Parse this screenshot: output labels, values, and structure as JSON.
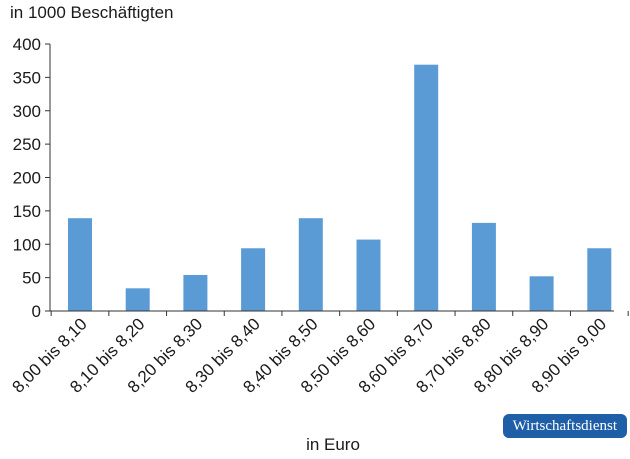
{
  "chart_data": {
    "type": "bar",
    "ylabel": "in 1000 Beschäftigten",
    "xlabel": "in Euro",
    "categories": [
      "8,00 bis 8,10",
      "8,10 bis 8,20",
      "8,20 bis 8,30",
      "8,30 bis 8,40",
      "8,40 bis 8,50",
      "8,50 bis 8,60",
      "8,60 bis 8,70",
      "8,70 bis 8,80",
      "8,80 bis 8,90",
      "8,90 bis 9,00"
    ],
    "values": [
      139,
      34,
      54,
      94,
      139,
      107,
      369,
      132,
      52,
      94
    ],
    "ylim": [
      0,
      400
    ],
    "yticks": [
      0,
      50,
      100,
      150,
      200,
      250,
      300,
      350,
      400
    ],
    "bar_color": "#5b9bd5",
    "grid": false,
    "legend": "none"
  },
  "brand": {
    "label": "Wirtschaftsdienst",
    "color": "#1f5fa8"
  }
}
